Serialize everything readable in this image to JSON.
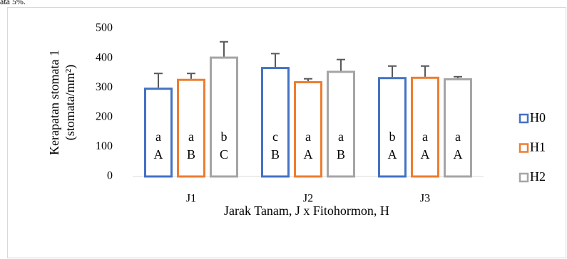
{
  "chart_data": {
    "type": "bar",
    "caption": "ata 5%.",
    "xlabel": "Jarak Tanam, J x Fitohormon, H",
    "ylabel": [
      "Kerapatan stomata 1",
      "(stomata/mm²)"
    ],
    "categories": [
      "J1",
      "J2",
      "J3"
    ],
    "series": [
      {
        "name": "H0",
        "color": "#4472c4",
        "values": [
          300,
          370,
          336
        ],
        "errors": [
          48,
          45,
          37
        ],
        "letters": [
          [
            "a",
            "A"
          ],
          [
            "c",
            "B"
          ],
          [
            "b",
            "A"
          ]
        ]
      },
      {
        "name": "H1",
        "color": "#ed7d31",
        "values": [
          330,
          322,
          337
        ],
        "errors": [
          18,
          8,
          36
        ],
        "letters": [
          [
            "a",
            "B"
          ],
          [
            "a",
            "A"
          ],
          [
            "a",
            "A"
          ]
        ]
      },
      {
        "name": "H2",
        "color": "#a5a5a5",
        "values": [
          405,
          357,
          332
        ],
        "errors": [
          50,
          38,
          5
        ],
        "letters": [
          [
            "b",
            "C"
          ],
          [
            "a",
            "B"
          ],
          [
            "a",
            "A"
          ]
        ]
      }
    ],
    "ylim": [
      0,
      500
    ],
    "yticks": [
      0,
      100,
      200,
      300,
      400,
      500
    ],
    "grid": false,
    "legend": "right"
  }
}
